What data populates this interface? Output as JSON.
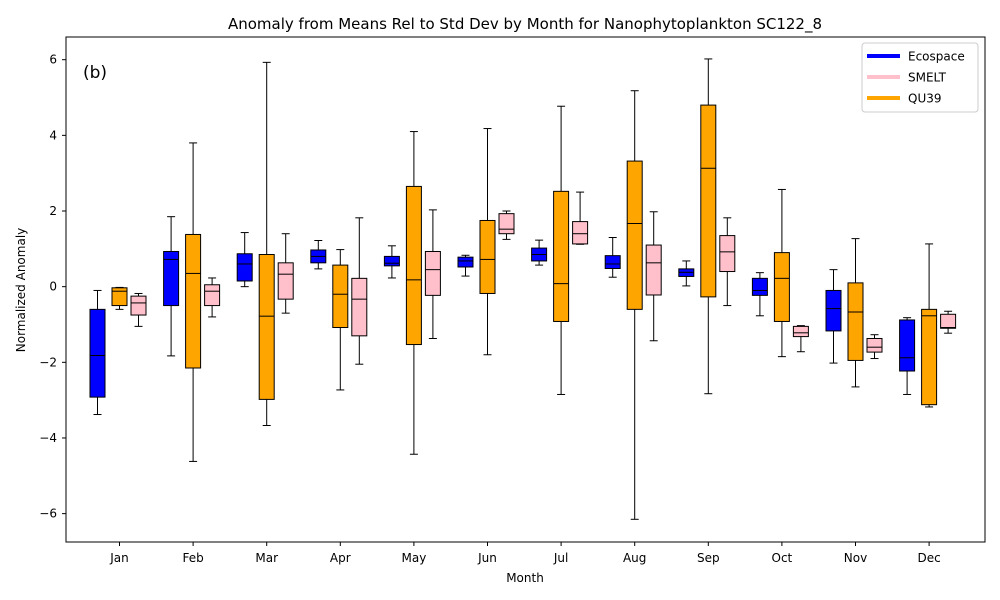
{
  "chart_data": {
    "type": "box",
    "title": "Anomaly from Means Rel to Std Dev by Month for Nanophytoplankton SC122_8",
    "panel_label": "(b)",
    "xlabel": "Month",
    "ylabel": "Normalized Anomaly",
    "categories": [
      "Jan",
      "Feb",
      "Mar",
      "Apr",
      "May",
      "Jun",
      "Jul",
      "Aug",
      "Sep",
      "Oct",
      "Nov",
      "Dec"
    ],
    "ylim": [
      -6.75,
      6.6
    ],
    "yticks": [
      -6,
      -4,
      -2,
      0,
      2,
      4,
      6
    ],
    "ytick_labels": [
      "−6",
      "−4",
      "−2",
      "0",
      "2",
      "4",
      "6"
    ],
    "legend_position": "top-right",
    "grid": false,
    "series": [
      {
        "name": "Ecospace",
        "color": "#0000ff",
        "boxes": [
          {
            "whislo": -3.38,
            "q1": -2.92,
            "med": -1.82,
            "q3": -0.6,
            "whishi": -0.1
          },
          {
            "whislo": -1.83,
            "q1": -0.5,
            "med": 0.72,
            "q3": 0.93,
            "whishi": 1.85
          },
          {
            "whislo": 0.0,
            "q1": 0.15,
            "med": 0.6,
            "q3": 0.87,
            "whishi": 1.43
          },
          {
            "whislo": 0.47,
            "q1": 0.63,
            "med": 0.8,
            "q3": 0.97,
            "whishi": 1.22
          },
          {
            "whislo": 0.23,
            "q1": 0.55,
            "med": 0.62,
            "q3": 0.8,
            "whishi": 1.08
          },
          {
            "whislo": 0.28,
            "q1": 0.52,
            "med": 0.68,
            "q3": 0.78,
            "whishi": 0.83
          },
          {
            "whislo": 0.57,
            "q1": 0.68,
            "med": 0.85,
            "q3": 1.02,
            "whishi": 1.23
          },
          {
            "whislo": 0.25,
            "q1": 0.48,
            "med": 0.6,
            "q3": 0.82,
            "whishi": 1.3
          },
          {
            "whislo": 0.02,
            "q1": 0.27,
            "med": 0.38,
            "q3": 0.47,
            "whishi": 0.68
          },
          {
            "whislo": -0.77,
            "q1": -0.23,
            "med": -0.1,
            "q3": 0.22,
            "whishi": 0.37
          },
          {
            "whislo": -2.02,
            "q1": -1.17,
            "med": -0.58,
            "q3": -0.1,
            "whishi": 0.45
          },
          {
            "whislo": -2.85,
            "q1": -2.23,
            "med": -1.88,
            "q3": -0.88,
            "whishi": -0.82
          }
        ]
      },
      {
        "name": "QU39",
        "color": "#ffa500",
        "boxes": [
          {
            "whislo": -0.6,
            "q1": -0.5,
            "med": -0.12,
            "q3": -0.03,
            "whishi": -0.02
          },
          {
            "whislo": -4.62,
            "q1": -2.15,
            "med": 0.35,
            "q3": 1.38,
            "whishi": 3.8
          },
          {
            "whislo": -3.67,
            "q1": -2.98,
            "med": -0.78,
            "q3": 0.85,
            "whishi": 5.93
          },
          {
            "whislo": -2.73,
            "q1": -1.08,
            "med": -0.2,
            "q3": 0.57,
            "whishi": 0.98
          },
          {
            "whislo": -4.43,
            "q1": -1.53,
            "med": 0.18,
            "q3": 2.65,
            "whishi": 4.1
          },
          {
            "whislo": -1.8,
            "q1": -0.18,
            "med": 0.72,
            "q3": 1.75,
            "whishi": 4.18
          },
          {
            "whislo": -2.85,
            "q1": -0.92,
            "med": 0.08,
            "q3": 2.52,
            "whishi": 4.77
          },
          {
            "whislo": -6.15,
            "q1": -0.6,
            "med": 1.67,
            "q3": 3.32,
            "whishi": 5.18
          },
          {
            "whislo": -2.83,
            "q1": -0.27,
            "med": 3.13,
            "q3": 4.8,
            "whishi": 6.02
          },
          {
            "whislo": -1.85,
            "q1": -0.92,
            "med": 0.22,
            "q3": 0.9,
            "whishi": 2.57
          },
          {
            "whislo": -2.65,
            "q1": -1.95,
            "med": -0.67,
            "q3": 0.1,
            "whishi": 1.27
          },
          {
            "whislo": -3.18,
            "q1": -3.12,
            "med": -0.77,
            "q3": -0.6,
            "whishi": 1.13
          }
        ]
      },
      {
        "name": "SMELT",
        "color": "#ffc0cb",
        "boxes": [
          {
            "whislo": -1.05,
            "q1": -0.75,
            "med": -0.43,
            "q3": -0.25,
            "whishi": -0.18
          },
          {
            "whislo": -0.8,
            "q1": -0.5,
            "med": -0.12,
            "q3": 0.05,
            "whishi": 0.23
          },
          {
            "whislo": -0.7,
            "q1": -0.33,
            "med": 0.33,
            "q3": 0.63,
            "whishi": 1.4
          },
          {
            "whislo": -2.05,
            "q1": -1.3,
            "med": -0.33,
            "q3": 0.22,
            "whishi": 1.82
          },
          {
            "whislo": -1.37,
            "q1": -0.23,
            "med": 0.45,
            "q3": 0.93,
            "whishi": 2.03
          },
          {
            "whislo": 1.25,
            "q1": 1.4,
            "med": 1.52,
            "q3": 1.93,
            "whishi": 2.0
          },
          {
            "whislo": 1.12,
            "q1": 1.13,
            "med": 1.4,
            "q3": 1.72,
            "whishi": 2.5
          },
          {
            "whislo": -1.43,
            "q1": -0.22,
            "med": 0.63,
            "q3": 1.1,
            "whishi": 1.98
          },
          {
            "whislo": -0.5,
            "q1": 0.4,
            "med": 0.92,
            "q3": 1.35,
            "whishi": 1.82
          },
          {
            "whislo": -1.72,
            "q1": -1.32,
            "med": -1.22,
            "q3": -1.05,
            "whishi": -1.03
          },
          {
            "whislo": -1.9,
            "q1": -1.73,
            "med": -1.6,
            "q3": -1.37,
            "whishi": -1.27
          },
          {
            "whislo": -1.23,
            "q1": -1.1,
            "med": -1.08,
            "q3": -0.73,
            "whishi": -0.65
          }
        ]
      }
    ]
  },
  "legend_entries": [
    {
      "label": "Ecospace",
      "color": "#0000ff"
    },
    {
      "label": "SMELT",
      "color": "#ffc0cb"
    },
    {
      "label": "QU39",
      "color": "#ffa500"
    }
  ]
}
